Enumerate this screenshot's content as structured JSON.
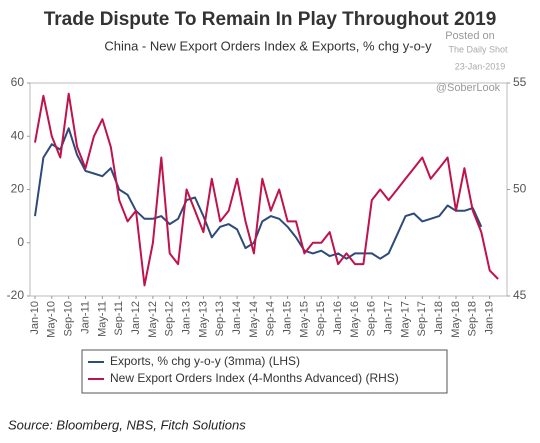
{
  "chart_data": {
    "type": "line",
    "title": "Trade Dispute To Remain In Play Throughout 2019",
    "subtitle": "China - New Export Orders Index & Exports, % chg y-o-y",
    "source": "Source: Bloomberg, NBS, Fitch Solutions",
    "watermark": {
      "posted": "Posted on",
      "site": "The Daily Shot",
      "date": "23-Jan-2019",
      "handle": "@SoberLook"
    },
    "categories": [
      "Jan-10",
      null,
      "May-10",
      null,
      "Sep-10",
      null,
      "Jan-11",
      null,
      "May-11",
      null,
      "Sep-11",
      null,
      "Jan-12",
      null,
      "May-12",
      null,
      "Sep-12",
      null,
      "Jan-13",
      null,
      "May-13",
      null,
      "Sep-13",
      null,
      "Jan-14",
      null,
      "May-14",
      null,
      "Sep-14",
      null,
      "Jan-15",
      null,
      "May-15",
      null,
      "Sep-15",
      null,
      "Jan-16",
      null,
      "May-16",
      null,
      "Sep-16",
      null,
      "Jan-17",
      null,
      "May-17",
      null,
      "Sep-17",
      null,
      "Jan-18",
      null,
      "May-18",
      null,
      "Sep-18",
      null,
      "Jan-19",
      null
    ],
    "series": [
      {
        "name": "Exports, % chg y-o-y (3mma) (LHS)",
        "color": "#2e4a7a",
        "axis": "y",
        "values": [
          10,
          32,
          37,
          35,
          43,
          33,
          27,
          26,
          25,
          28,
          20,
          18,
          12,
          9,
          9,
          10,
          7,
          9,
          16,
          17,
          10,
          2,
          6,
          7,
          5,
          -2,
          0,
          8,
          10,
          9,
          6,
          2,
          -3,
          -4,
          -3,
          -5,
          -4,
          -6,
          -4,
          -4,
          -4,
          -6,
          -4,
          3,
          10,
          11,
          8,
          9,
          10,
          14,
          12,
          12,
          13,
          6,
          null,
          null
        ]
      },
      {
        "name": "New Export Orders Index (4-Months Advanced) (RHS)",
        "color": "#c0134a",
        "axis": "y2",
        "values": [
          52.2,
          54.4,
          52.5,
          51.5,
          54.5,
          52,
          51,
          52.5,
          53.3,
          52,
          49.5,
          48.5,
          49,
          45.5,
          47.5,
          51.5,
          47,
          46.5,
          50,
          49,
          48,
          50.5,
          48.5,
          49,
          50.5,
          48.5,
          47,
          50.5,
          49,
          50,
          48.5,
          48.5,
          47,
          47.5,
          47.5,
          48,
          46.5,
          47,
          46.5,
          46.5,
          49.5,
          50,
          49.5,
          50,
          50.5,
          51,
          51.5,
          50.5,
          51,
          51.5,
          49,
          51,
          49,
          48,
          46.2,
          45.8
        ]
      }
    ],
    "ylim": [
      -20,
      60
    ],
    "yticks": [
      -20,
      0,
      20,
      40,
      60
    ],
    "y2lim": [
      45,
      55
    ],
    "y2ticks": [
      45,
      50,
      55
    ],
    "grid": false
  }
}
